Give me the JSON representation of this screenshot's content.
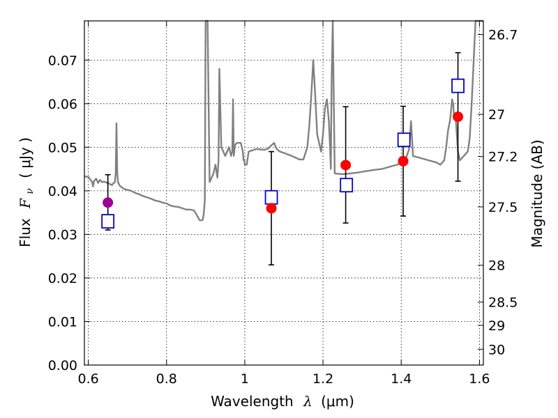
{
  "chart_data": {
    "type": "scatter",
    "title": "",
    "xlabel_text": "Wavelength",
    "xlabel_symbol": "λ",
    "xlabel_unit": "(μm)",
    "ylabel_text": "Flux",
    "ylabel_symbol": "F",
    "ylabel_subscript": "ν",
    "ylabel_unit": "( μJy )",
    "y2label": "Magnitude (AB)",
    "xlim": [
      0.59,
      1.61
    ],
    "ylim": [
      0.0,
      0.079
    ],
    "grid": true,
    "x_ticks": [
      0.6,
      0.8,
      1.0,
      1.2,
      1.4,
      1.6
    ],
    "x_tick_labels": [
      "0.6",
      "0.8",
      "1",
      "1.2",
      "1.4",
      "1.6"
    ],
    "y_ticks": [
      0.0,
      0.01,
      0.02,
      0.03,
      0.04,
      0.05,
      0.06,
      0.07
    ],
    "y_tick_labels": [
      "0.00",
      "0.01",
      "0.02",
      "0.03",
      "0.04",
      "0.05",
      "0.06",
      "0.07"
    ],
    "mag_ticks": [
      26.7,
      27,
      27.2,
      27.5,
      28,
      28.5,
      29,
      30
    ],
    "mag_tick_labels": [
      "26.7",
      "27",
      "27.2",
      "27.5",
      "28",
      "28.5",
      "29",
      "30"
    ],
    "colors": {
      "model": "#808080",
      "observed": "#ff0000",
      "observed_first": "#990099",
      "model_phot": "#0000cc",
      "errorbar": "#000000"
    },
    "series": [
      {
        "name": "model spectrum",
        "kind": "line",
        "x": [
          0.59,
          0.6,
          0.605,
          0.61,
          0.612,
          0.615,
          0.62,
          0.625,
          0.63,
          0.635,
          0.64,
          0.65,
          0.66,
          0.665,
          0.668,
          0.67,
          0.672,
          0.674,
          0.676,
          0.68,
          0.69,
          0.7,
          0.71,
          0.72,
          0.73,
          0.74,
          0.75,
          0.76,
          0.77,
          0.78,
          0.79,
          0.8,
          0.81,
          0.82,
          0.83,
          0.84,
          0.85,
          0.86,
          0.87,
          0.875,
          0.88,
          0.884,
          0.888,
          0.892,
          0.895,
          0.898,
          0.9,
          0.902,
          0.905,
          0.91,
          0.915,
          0.92,
          0.925,
          0.93,
          0.933,
          0.935,
          0.937,
          0.94,
          0.95,
          0.96,
          0.965,
          0.968,
          0.97,
          0.972,
          0.975,
          0.98,
          0.99,
          0.995,
          0.997,
          0.999,
          1.0,
          1.005,
          1.01,
          1.02,
          1.03,
          1.04,
          1.05,
          1.06,
          1.065,
          1.07,
          1.075,
          1.08,
          1.085,
          1.09,
          1.1,
          1.12,
          1.14,
          1.15,
          1.16,
          1.165,
          1.17,
          1.175,
          1.18,
          1.185,
          1.19,
          1.195,
          1.2,
          1.205,
          1.21,
          1.215,
          1.218,
          1.22,
          1.222,
          1.225,
          1.23,
          1.25,
          1.27,
          1.29,
          1.31,
          1.33,
          1.35,
          1.37,
          1.39,
          1.4,
          1.41,
          1.42,
          1.425,
          1.43,
          1.45,
          1.47,
          1.49,
          1.5,
          1.51,
          1.515,
          1.52,
          1.525,
          1.528,
          1.53,
          1.533,
          1.535,
          1.537,
          1.54,
          1.545,
          1.55,
          1.56,
          1.57,
          1.575,
          1.58,
          1.59,
          1.6,
          1.605,
          1.61
        ],
        "y": [
          0.0433,
          0.0432,
          0.0426,
          0.042,
          0.041,
          0.0423,
          0.0428,
          0.0418,
          0.0425,
          0.042,
          0.0421,
          0.0418,
          0.0413,
          0.0418,
          0.042,
          0.044,
          0.0555,
          0.044,
          0.042,
          0.0412,
          0.0405,
          0.0402,
          0.04,
          0.0395,
          0.0392,
          0.0388,
          0.0385,
          0.0382,
          0.0378,
          0.0376,
          0.0373,
          0.0371,
          0.0366,
          0.0364,
          0.0363,
          0.036,
          0.0357,
          0.0357,
          0.0355,
          0.0348,
          0.034,
          0.0333,
          0.0332,
          0.0333,
          0.0345,
          0.038,
          0.079,
          0.079,
          0.079,
          0.042,
          0.043,
          0.044,
          0.046,
          0.043,
          0.047,
          0.068,
          0.061,
          0.05,
          0.048,
          0.05,
          0.048,
          0.049,
          0.061,
          0.048,
          0.0505,
          0.051,
          0.051,
          0.049,
          0.047,
          0.047,
          0.046,
          0.046,
          0.049,
          0.0493,
          0.0496,
          0.0495,
          0.0494,
          0.0497,
          0.0502,
          0.0506,
          0.051,
          0.0498,
          0.0493,
          0.049,
          0.0487,
          0.048,
          0.0472,
          0.0472,
          0.05,
          0.055,
          0.062,
          0.07,
          0.062,
          0.053,
          0.051,
          0.049,
          0.053,
          0.059,
          0.061,
          0.056,
          0.05,
          0.045,
          0.065,
          0.079,
          0.044,
          0.0438,
          0.044,
          0.0442,
          0.0445,
          0.0448,
          0.045,
          0.0455,
          0.046,
          0.0465,
          0.047,
          0.0495,
          0.056,
          0.048,
          0.0475,
          0.047,
          0.0465,
          0.046,
          0.047,
          0.05,
          0.054,
          0.0562,
          0.059,
          0.061,
          0.06,
          0.057,
          0.0575,
          0.056,
          0.049,
          0.047,
          0.048,
          0.049,
          0.052,
          0.06,
          0.079,
          0.079,
          0.079,
          0.079
        ]
      },
      {
        "name": "observed photometry",
        "kind": "scatter_errorbar",
        "x": [
          0.65,
          1.068,
          1.258,
          1.405,
          1.545
        ],
        "y": [
          0.0373,
          0.036,
          0.0459,
          0.0468,
          0.057
        ],
        "y_low": [
          0.031,
          0.023,
          0.0326,
          0.0342,
          0.0422
        ],
        "y_high": [
          0.0437,
          0.049,
          0.0593,
          0.0594,
          0.0717
        ]
      },
      {
        "name": "model photometry",
        "kind": "scatter_square",
        "x": [
          0.65,
          1.068,
          1.26,
          1.407,
          1.545
        ],
        "y": [
          0.033,
          0.0385,
          0.0413,
          0.0517,
          0.0641
        ]
      }
    ]
  }
}
